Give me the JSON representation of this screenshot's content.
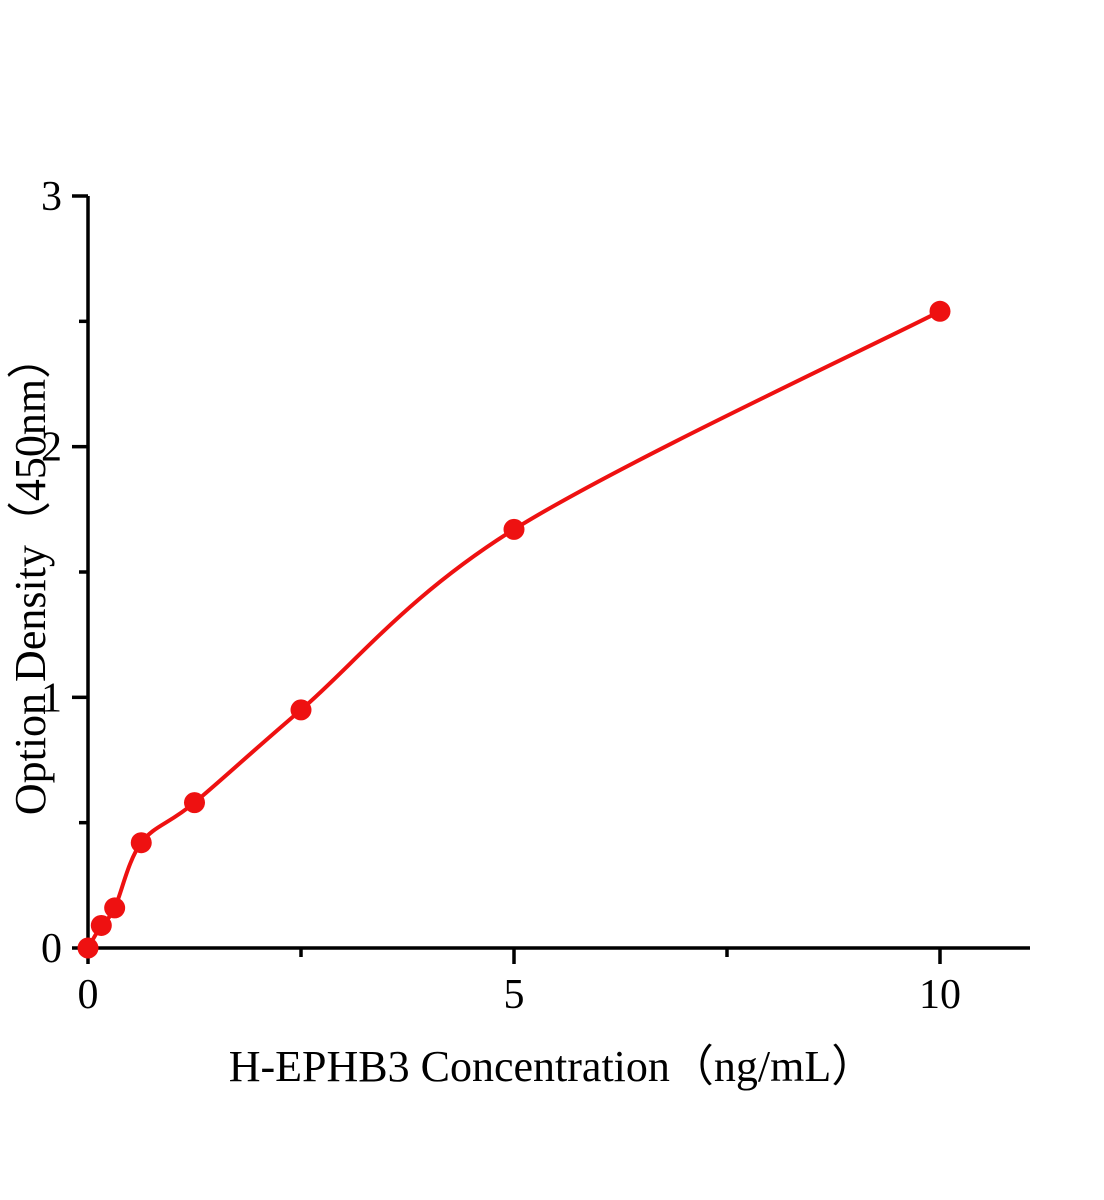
{
  "chart_data": {
    "type": "scatter",
    "x": [
      0,
      0.156,
      0.313,
      0.625,
      1.25,
      2.5,
      5,
      10
    ],
    "y": [
      0,
      0.09,
      0.16,
      0.42,
      0.58,
      0.95,
      1.67,
      2.54
    ],
    "title": "",
    "xlabel": "H-EPHB3 Concentration（ng/mL）",
    "ylabel": "Option Density（450nm）",
    "xlim": [
      0,
      11.1
    ],
    "ylim": [
      0,
      3
    ],
    "x_ticks": [
      0,
      5,
      10
    ],
    "x_minor_ticks": [
      2.5,
      7.5
    ],
    "y_ticks": [
      0,
      1,
      2,
      3
    ],
    "y_minor_ticks": [
      0.5,
      1.5,
      2.5
    ],
    "grid": false,
    "legend": "none",
    "marker": "circle",
    "marker_color": "#ee1111",
    "line_color": "#ee1111",
    "axis_color": "#000000",
    "curve": "smooth fitted curve through data points"
  }
}
